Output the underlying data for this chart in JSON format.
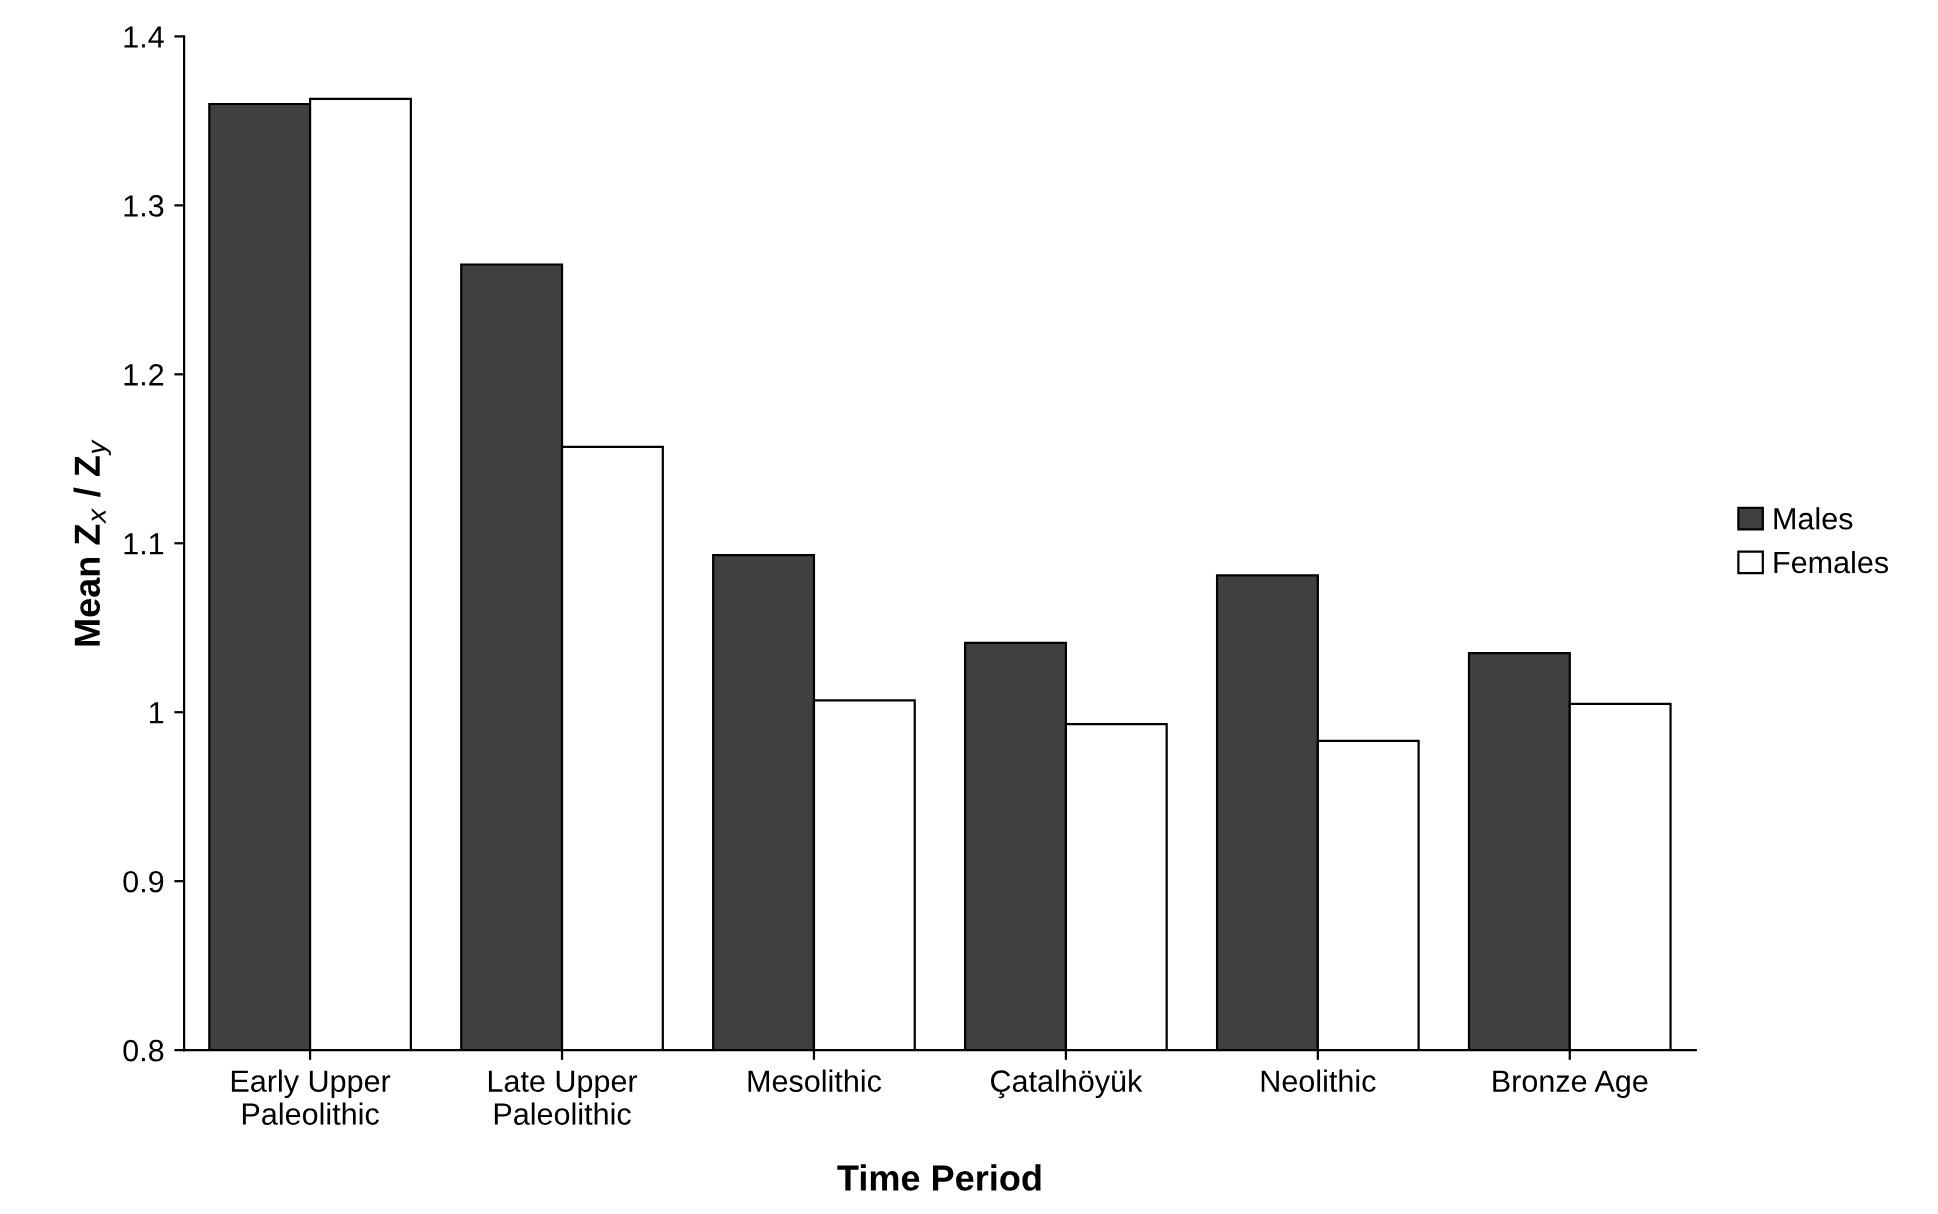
{
  "chart_data": {
    "type": "bar",
    "xlabel": "Time Period",
    "ylabel": "Mean Z$_{x}$ / Z$_{y}$",
    "categories": [
      "Early Upper\nPaleolithic",
      "Late Upper\nPaleolithic",
      "Mesolithic",
      "Çatalhöyük",
      "Neolithic",
      "Bronze Age"
    ],
    "series": [
      {
        "name": "Males",
        "color": "#404040",
        "values": [
          1.36,
          1.265,
          1.093,
          1.041,
          1.081,
          1.035
        ]
      },
      {
        "name": "Females",
        "color": "#ffffff",
        "values": [
          1.363,
          1.157,
          1.007,
          0.993,
          0.983,
          1.005
        ]
      }
    ],
    "ylim": [
      0.8,
      1.4
    ],
    "yticks": [
      0.8,
      0.9,
      1,
      1.1,
      1.2,
      1.3,
      1.4
    ],
    "grid": false,
    "legend": "right"
  }
}
